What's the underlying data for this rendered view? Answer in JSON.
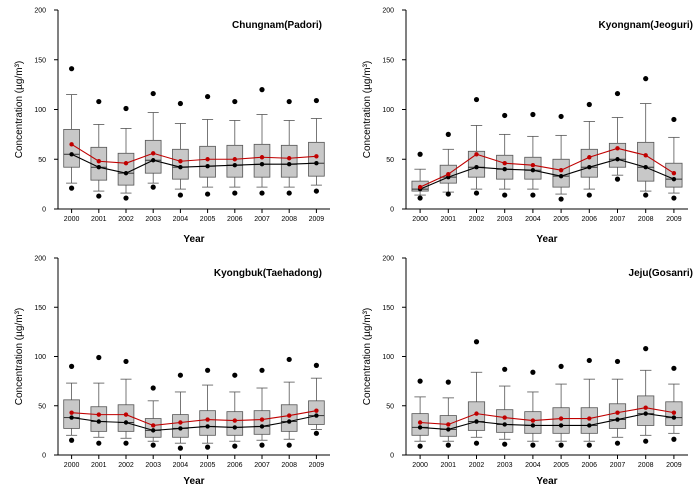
{
  "chart_data": [
    {
      "type": "box",
      "title": "Chungnam(Padori)",
      "xlabel": "Year",
      "ylabel": "Concentration (µg/m³)",
      "categories": [
        "2000",
        "2001",
        "2002",
        "2003",
        "2004",
        "2005",
        "2006",
        "2007",
        "2008",
        "2009"
      ],
      "ylim": [
        0,
        200
      ],
      "yticks": [
        0,
        50,
        100,
        150,
        200
      ],
      "boxes": [
        {
          "wlo": 26,
          "q1": 42,
          "median": 55,
          "q3": 80,
          "whi": 115,
          "mean": 65,
          "outliers": [
            21,
            141
          ]
        },
        {
          "wlo": 18,
          "q1": 29,
          "median": 42,
          "q3": 62,
          "whi": 85,
          "mean": 48,
          "outliers": [
            13,
            108
          ]
        },
        {
          "wlo": 16,
          "q1": 24,
          "median": 36,
          "q3": 56,
          "whi": 81,
          "mean": 46,
          "outliers": [
            11,
            101
          ]
        },
        {
          "wlo": 26,
          "q1": 36,
          "median": 49,
          "q3": 69,
          "whi": 97,
          "mean": 56,
          "outliers": [
            22,
            116
          ]
        },
        {
          "wlo": 20,
          "q1": 30,
          "median": 42,
          "q3": 60,
          "whi": 86,
          "mean": 48,
          "outliers": [
            14,
            106
          ]
        },
        {
          "wlo": 22,
          "q1": 32,
          "median": 43,
          "q3": 63,
          "whi": 90,
          "mean": 50,
          "outliers": [
            15,
            113
          ]
        },
        {
          "wlo": 22,
          "q1": 32,
          "median": 44,
          "q3": 64,
          "whi": 89,
          "mean": 50,
          "outliers": [
            16,
            108
          ]
        },
        {
          "wlo": 22,
          "q1": 32,
          "median": 45,
          "q3": 65,
          "whi": 95,
          "mean": 52,
          "outliers": [
            16,
            120
          ]
        },
        {
          "wlo": 22,
          "q1": 32,
          "median": 45,
          "q3": 64,
          "whi": 89,
          "mean": 51,
          "outliers": [
            16,
            108
          ]
        },
        {
          "wlo": 24,
          "q1": 33,
          "median": 46,
          "q3": 67,
          "whi": 91,
          "mean": 53,
          "outliers": [
            18,
            109
          ]
        }
      ]
    },
    {
      "type": "box",
      "title": "Kyongnam(Jeoguri)",
      "xlabel": "Year",
      "ylabel": "Concentration (µg/m³)",
      "categories": [
        "2000",
        "2001",
        "2002",
        "2003",
        "2004",
        "2005",
        "2006",
        "2007",
        "2008",
        "2009"
      ],
      "ylim": [
        0,
        200
      ],
      "yticks": [
        0,
        50,
        100,
        150,
        200
      ],
      "boxes": [
        {
          "wlo": 14,
          "q1": 18,
          "median": 20,
          "q3": 28,
          "whi": 40,
          "mean": 22,
          "outliers": [
            11,
            55
          ]
        },
        {
          "wlo": 17,
          "q1": 26,
          "median": 32,
          "q3": 44,
          "whi": 60,
          "mean": 35,
          "outliers": [
            15,
            75
          ]
        },
        {
          "wlo": 20,
          "q1": 32,
          "median": 42,
          "q3": 58,
          "whi": 84,
          "mean": 55,
          "outliers": [
            16,
            110
          ]
        },
        {
          "wlo": 20,
          "q1": 30,
          "median": 40,
          "q3": 54,
          "whi": 75,
          "mean": 46,
          "outliers": [
            14,
            94
          ]
        },
        {
          "wlo": 20,
          "q1": 30,
          "median": 39,
          "q3": 52,
          "whi": 73,
          "mean": 44,
          "outliers": [
            14,
            95
          ]
        },
        {
          "wlo": 15,
          "q1": 22,
          "median": 33,
          "q3": 50,
          "whi": 74,
          "mean": 39,
          "outliers": [
            10,
            93
          ]
        },
        {
          "wlo": 20,
          "q1": 32,
          "median": 42,
          "q3": 60,
          "whi": 88,
          "mean": 52,
          "outliers": [
            14,
            105
          ]
        },
        {
          "wlo": 34,
          "q1": 42,
          "median": 50,
          "q3": 66,
          "whi": 92,
          "mean": 61,
          "outliers": [
            30,
            116
          ]
        },
        {
          "wlo": 18,
          "q1": 28,
          "median": 42,
          "q3": 67,
          "whi": 106,
          "mean": 54,
          "outliers": [
            14,
            131
          ]
        },
        {
          "wlo": 16,
          "q1": 22,
          "median": 30,
          "q3": 46,
          "whi": 72,
          "mean": 36,
          "outliers": [
            11,
            90
          ]
        }
      ]
    },
    {
      "type": "box",
      "title": "Kyongbuk(Taehadong)",
      "xlabel": "Year",
      "ylabel": "Concentration (µg/m³)",
      "categories": [
        "2000",
        "2001",
        "2002",
        "2003",
        "2004",
        "2005",
        "2006",
        "2007",
        "2008",
        "2009"
      ],
      "ylim": [
        0,
        200
      ],
      "yticks": [
        0,
        50,
        100,
        150,
        200
      ],
      "boxes": [
        {
          "wlo": 20,
          "q1": 27,
          "median": 38,
          "q3": 56,
          "whi": 73,
          "mean": 43,
          "outliers": [
            15,
            90
          ]
        },
        {
          "wlo": 18,
          "q1": 24,
          "median": 34,
          "q3": 49,
          "whi": 73,
          "mean": 41,
          "outliers": [
            12,
            99
          ]
        },
        {
          "wlo": 17,
          "q1": 24,
          "median": 33,
          "q3": 51,
          "whi": 77,
          "mean": 41,
          "outliers": [
            12,
            95
          ]
        },
        {
          "wlo": 14,
          "q1": 18,
          "median": 25,
          "q3": 37,
          "whi": 55,
          "mean": 30,
          "outliers": [
            10,
            68
          ]
        },
        {
          "wlo": 12,
          "q1": 18,
          "median": 27,
          "q3": 41,
          "whi": 64,
          "mean": 33,
          "outliers": [
            7,
            81
          ]
        },
        {
          "wlo": 12,
          "q1": 20,
          "median": 29,
          "q3": 45,
          "whi": 71,
          "mean": 36,
          "outliers": [
            8,
            86
          ]
        },
        {
          "wlo": 14,
          "q1": 20,
          "median": 28,
          "q3": 44,
          "whi": 64,
          "mean": 35,
          "outliers": [
            9,
            81
          ]
        },
        {
          "wlo": 15,
          "q1": 21,
          "median": 29,
          "q3": 45,
          "whi": 68,
          "mean": 36,
          "outliers": [
            10,
            86
          ]
        },
        {
          "wlo": 16,
          "q1": 24,
          "median": 34,
          "q3": 51,
          "whi": 74,
          "mean": 40,
          "outliers": [
            10,
            97
          ]
        },
        {
          "wlo": 26,
          "q1": 31,
          "median": 40,
          "q3": 55,
          "whi": 78,
          "mean": 45,
          "outliers": [
            22,
            91
          ]
        }
      ]
    },
    {
      "type": "box",
      "title": "Jeju(Gosanri)",
      "xlabel": "Year",
      "ylabel": "Concentration (µg/m³)",
      "categories": [
        "2000",
        "2001",
        "2002",
        "2003",
        "2004",
        "2005",
        "2006",
        "2007",
        "2008",
        "2009"
      ],
      "ylim": [
        0,
        200
      ],
      "yticks": [
        0,
        50,
        100,
        150,
        200
      ],
      "boxes": [
        {
          "wlo": 14,
          "q1": 20,
          "median": 28,
          "q3": 42,
          "whi": 59,
          "mean": 33,
          "outliers": [
            9,
            75
          ]
        },
        {
          "wlo": 14,
          "q1": 19,
          "median": 26,
          "q3": 40,
          "whi": 58,
          "mean": 31,
          "outliers": [
            10,
            74
          ]
        },
        {
          "wlo": 18,
          "q1": 25,
          "median": 34,
          "q3": 54,
          "whi": 84,
          "mean": 42,
          "outliers": [
            12,
            115
          ]
        },
        {
          "wlo": 16,
          "q1": 23,
          "median": 31,
          "q3": 46,
          "whi": 70,
          "mean": 38,
          "outliers": [
            11,
            87
          ]
        },
        {
          "wlo": 14,
          "q1": 22,
          "median": 30,
          "q3": 44,
          "whi": 64,
          "mean": 35,
          "outliers": [
            10,
            84
          ]
        },
        {
          "wlo": 14,
          "q1": 22,
          "median": 30,
          "q3": 48,
          "whi": 72,
          "mean": 37,
          "outliers": [
            10,
            90
          ]
        },
        {
          "wlo": 14,
          "q1": 22,
          "median": 30,
          "q3": 48,
          "whi": 77,
          "mean": 37,
          "outliers": [
            10,
            96
          ]
        },
        {
          "wlo": 18,
          "q1": 27,
          "median": 36,
          "q3": 52,
          "whi": 77,
          "mean": 43,
          "outliers": [
            12,
            95
          ]
        },
        {
          "wlo": 20,
          "q1": 30,
          "median": 42,
          "q3": 60,
          "whi": 86,
          "mean": 48,
          "outliers": [
            14,
            108
          ]
        },
        {
          "wlo": 22,
          "q1": 30,
          "median": 38,
          "q3": 54,
          "whi": 72,
          "mean": 43,
          "outliers": [
            16,
            88
          ]
        }
      ]
    }
  ]
}
